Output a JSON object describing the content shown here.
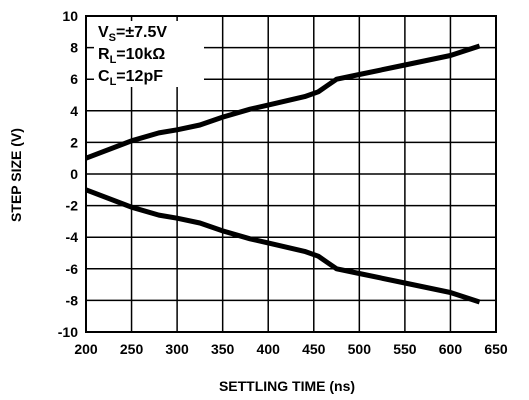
{
  "chart_data": {
    "type": "line",
    "xlabel": "SETTLING TIME (ns)",
    "ylabel": "STEP SIZE (V)",
    "xlim": [
      200,
      650
    ],
    "ylim": [
      -10,
      10
    ],
    "x_ticks": [
      "200",
      "250",
      "300",
      "350",
      "400",
      "450",
      "500",
      "550",
      "600",
      "650"
    ],
    "y_ticks": [
      "10",
      "8",
      "6",
      "4",
      "2",
      "0",
      "-2",
      "-4",
      "-6",
      "-8",
      "-10"
    ],
    "grid": true,
    "series": [
      {
        "x": [
          200,
          250,
          280,
          300,
          325,
          350,
          380,
          410,
          440,
          455,
          465,
          475,
          500,
          550,
          600,
          632
        ],
        "y": [
          1.0,
          2.1,
          2.6,
          2.8,
          3.1,
          3.6,
          4.1,
          4.5,
          4.9,
          5.2,
          5.6,
          6.0,
          6.3,
          6.9,
          7.5,
          8.1
        ]
      },
      {
        "x": [
          200,
          250,
          280,
          300,
          325,
          350,
          380,
          410,
          440,
          455,
          465,
          475,
          500,
          550,
          600,
          632
        ],
        "y": [
          -1.0,
          -2.1,
          -2.6,
          -2.8,
          -3.1,
          -3.6,
          -4.1,
          -4.5,
          -4.9,
          -5.2,
          -5.6,
          -6.0,
          -6.3,
          -6.9,
          -7.5,
          -8.1
        ]
      }
    ],
    "annotation": {
      "line1": {
        "main": "V",
        "sub": "S",
        "rest": "=±7.5V"
      },
      "line2": {
        "main": "R",
        "sub": "L",
        "rest": "=10kΩ"
      },
      "line3": {
        "main": "C",
        "sub": "L",
        "rest": "=12pF"
      }
    }
  }
}
